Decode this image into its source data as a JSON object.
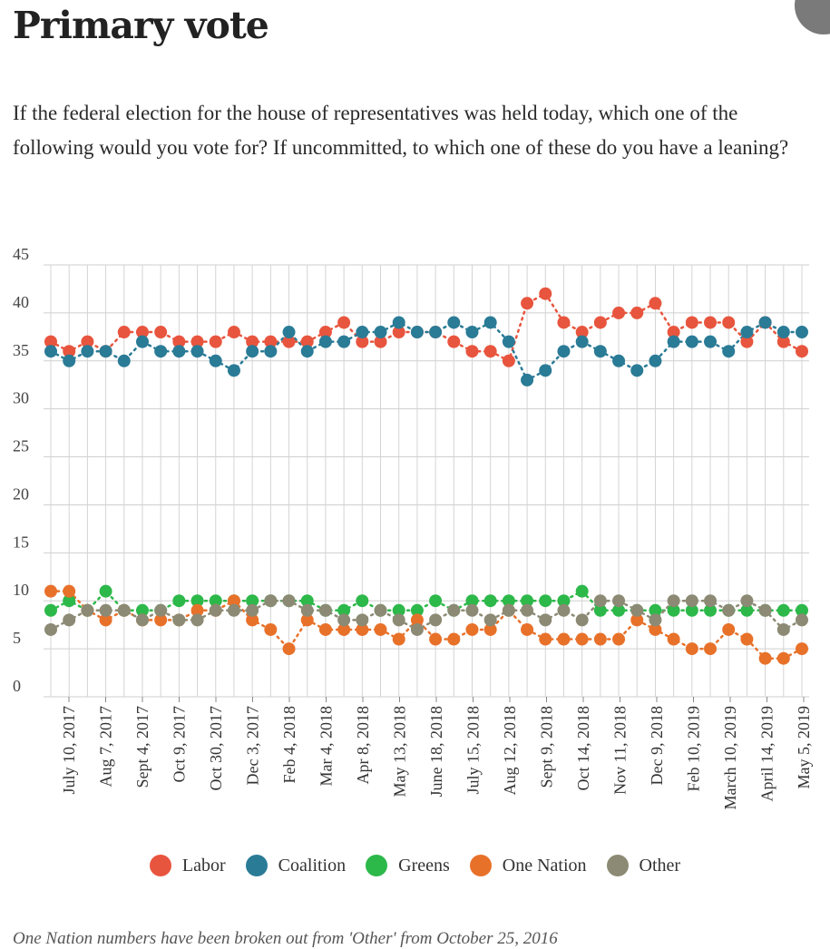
{
  "title": "Primary vote",
  "subtitle": "If the federal election for the house of representatives was held today, which one of the following would you vote for? If uncommitted, to which one of these do you have a leaning?",
  "footnote": "One Nation numbers have been broken out from 'Other' from October 25, 2016",
  "chart_data": {
    "type": "line",
    "title": "Primary vote",
    "xlabel": "",
    "ylabel": "",
    "ylim": [
      0,
      45
    ],
    "yticks": [
      0,
      5,
      10,
      15,
      20,
      25,
      30,
      35,
      40,
      45
    ],
    "grid": true,
    "legend_position": "bottom",
    "x_tick_labels": [
      "July 10, 2017",
      "Aug 7, 2017",
      "Sept 4, 2017",
      "Oct 9, 2017",
      "Oct 30, 2017",
      "Dec 3, 2017",
      "Feb 4, 2018",
      "Mar 4, 2018",
      "Apr 8, 2018",
      "May 13, 2018",
      "June 18, 2018",
      "July 15, 2018",
      "Aug 12, 2018",
      "Sept 9, 2018",
      "Oct 14, 2018",
      "Nov 11, 2018",
      "Dec 9, 2018",
      "Feb 10, 2019",
      "March 10, 2019",
      "April 14, 2019",
      "May 5, 2019"
    ],
    "series": [
      {
        "name": "Labor",
        "color": "#e8553e",
        "values": [
          37,
          36,
          37,
          36,
          38,
          38,
          38,
          37,
          37,
          37,
          38,
          37,
          37,
          37,
          37,
          38,
          39,
          37,
          37,
          38,
          38,
          38,
          37,
          36,
          36,
          35,
          41,
          42,
          39,
          38,
          39,
          40,
          40,
          41,
          38,
          39,
          39,
          39,
          37,
          39,
          37,
          36
        ]
      },
      {
        "name": "Coalition",
        "color": "#2a7b96",
        "values": [
          36,
          35,
          36,
          36,
          35,
          37,
          36,
          36,
          36,
          35,
          34,
          36,
          36,
          38,
          36,
          37,
          37,
          38,
          38,
          39,
          38,
          38,
          39,
          38,
          39,
          37,
          33,
          34,
          36,
          37,
          36,
          35,
          34,
          35,
          37,
          37,
          37,
          36,
          38,
          39,
          38,
          38
        ]
      },
      {
        "name": "Greens",
        "color": "#2db84a",
        "values": [
          9,
          10,
          9,
          11,
          9,
          9,
          9,
          10,
          10,
          10,
          10,
          10,
          10,
          10,
          10,
          9,
          9,
          10,
          9,
          9,
          9,
          10,
          9,
          10,
          10,
          10,
          10,
          10,
          10,
          11,
          9,
          9,
          9,
          9,
          9,
          9,
          9,
          9,
          9,
          9,
          9,
          9
        ]
      },
      {
        "name": "One Nation",
        "color": "#e8712a",
        "values": [
          11,
          11,
          9,
          8,
          9,
          8,
          8,
          8,
          9,
          9,
          10,
          8,
          7,
          5,
          8,
          7,
          7,
          7,
          7,
          6,
          8,
          6,
          6,
          7,
          7,
          9,
          7,
          6,
          6,
          6,
          6,
          6,
          8,
          7,
          6,
          5,
          5,
          7,
          6,
          4,
          4,
          5
        ]
      },
      {
        "name": "Other",
        "color": "#8c8a74",
        "values": [
          7,
          8,
          9,
          9,
          9,
          8,
          9,
          8,
          8,
          9,
          9,
          9,
          10,
          10,
          9,
          9,
          8,
          8,
          9,
          8,
          7,
          8,
          9,
          9,
          8,
          9,
          9,
          8,
          9,
          8,
          10,
          10,
          9,
          8,
          10,
          10,
          10,
          9,
          10,
          9,
          7,
          8
        ]
      }
    ]
  }
}
